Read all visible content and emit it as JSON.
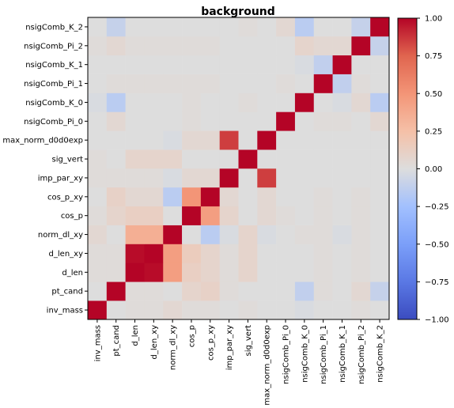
{
  "chart_data": {
    "type": "heatmap",
    "title": "background",
    "x_labels": [
      "inv_mass",
      "pt_cand",
      "d_len",
      "d_len_xy",
      "norm_dl_xy",
      "cos_p",
      "cos_p_xy",
      "imp_par_xy",
      "sig_vert",
      "max_norm_d0d0exp",
      "nsigComb_Pi_0",
      "nsigComb_K_0",
      "nsigComb_Pi_1",
      "nsigComb_K_1",
      "nsigComb_Pi_2",
      "nsigComb_K_2"
    ],
    "y_labels": [
      "inv_mass",
      "pt_cand",
      "d_len",
      "d_len_xy",
      "norm_dl_xy",
      "cos_p",
      "cos_p_xy",
      "imp_par_xy",
      "sig_vert",
      "max_norm_d0d0exp",
      "nsigComb_Pi_0",
      "nsigComb_K_0",
      "nsigComb_Pi_1",
      "nsigComb_K_1",
      "nsigComb_Pi_2",
      "nsigComb_K_2"
    ],
    "values": [
      [
        1.0,
        0.0,
        0.02,
        0.02,
        0.05,
        0.02,
        0.02,
        0.0,
        0.02,
        0.0,
        0.0,
        -0.02,
        0.0,
        0.0,
        0.02,
        0.0
      ],
      [
        0.0,
        1.0,
        0.02,
        0.02,
        0.0,
        0.08,
        0.1,
        0.02,
        0.0,
        0.0,
        0.0,
        -0.12,
        0.02,
        0.0,
        0.05,
        -0.1
      ],
      [
        0.02,
        0.02,
        1.0,
        0.98,
        0.45,
        0.12,
        0.08,
        0.02,
        0.08,
        0.0,
        0.0,
        0.0,
        0.02,
        0.0,
        0.02,
        0.0
      ],
      [
        0.02,
        0.02,
        0.98,
        1.0,
        0.45,
        0.15,
        0.08,
        0.02,
        0.08,
        0.0,
        0.0,
        0.0,
        0.02,
        0.0,
        0.02,
        0.0
      ],
      [
        0.05,
        0.0,
        0.35,
        0.35,
        1.0,
        0.0,
        -0.15,
        -0.02,
        0.08,
        -0.02,
        0.0,
        0.02,
        0.02,
        -0.02,
        0.02,
        0.0
      ],
      [
        0.02,
        0.08,
        0.12,
        0.12,
        0.0,
        1.0,
        0.45,
        0.08,
        0.0,
        0.05,
        0.02,
        0.0,
        0.02,
        0.0,
        0.02,
        0.0
      ],
      [
        0.0,
        0.1,
        0.05,
        0.05,
        -0.15,
        0.5,
        1.0,
        0.05,
        0.0,
        0.05,
        0.0,
        0.0,
        0.02,
        0.0,
        0.02,
        0.0
      ],
      [
        0.02,
        0.02,
        0.02,
        0.02,
        -0.02,
        0.05,
        0.05,
        1.0,
        0.0,
        0.85,
        0.0,
        0.0,
        0.0,
        0.0,
        0.0,
        0.0
      ],
      [
        0.02,
        0.0,
        0.08,
        0.08,
        0.08,
        0.0,
        0.0,
        0.0,
        1.0,
        0.0,
        0.0,
        0.0,
        0.0,
        0.0,
        0.0,
        0.0
      ],
      [
        0.0,
        0.0,
        0.0,
        0.0,
        -0.02,
        0.05,
        0.05,
        0.85,
        0.0,
        1.0,
        0.0,
        0.0,
        0.0,
        0.0,
        0.0,
        0.0
      ],
      [
        0.0,
        0.05,
        0.0,
        0.0,
        0.0,
        0.02,
        0.0,
        0.0,
        0.0,
        0.0,
        1.0,
        0.0,
        0.02,
        0.02,
        0.0,
        0.05
      ],
      [
        -0.02,
        -0.15,
        0.0,
        0.0,
        0.0,
        0.02,
        0.0,
        0.0,
        0.02,
        0.0,
        0.0,
        1.0,
        0.0,
        -0.02,
        0.05,
        -0.15
      ],
      [
        0.0,
        0.02,
        0.02,
        0.02,
        0.02,
        0.02,
        0.02,
        0.0,
        0.0,
        0.0,
        0.02,
        0.0,
        1.0,
        -0.12,
        0.02,
        0.0
      ],
      [
        0.0,
        0.0,
        0.0,
        0.0,
        0.0,
        0.0,
        0.0,
        0.0,
        0.0,
        0.0,
        0.0,
        -0.02,
        -0.12,
        1.0,
        0.0,
        0.0
      ],
      [
        0.02,
        0.05,
        0.02,
        0.02,
        0.02,
        0.02,
        0.02,
        0.0,
        0.0,
        0.0,
        0.0,
        0.08,
        0.05,
        0.05,
        1.0,
        -0.1
      ],
      [
        0.0,
        -0.1,
        0.0,
        0.0,
        0.0,
        0.0,
        0.0,
        0.0,
        0.02,
        0.0,
        0.05,
        -0.15,
        0.0,
        0.0,
        -0.1,
        1.0
      ]
    ],
    "colorbar": {
      "min": -1.0,
      "max": 1.0,
      "ticks": [
        1.0,
        0.75,
        0.5,
        0.25,
        0.0,
        -0.25,
        -0.5,
        -0.75,
        -1.0
      ],
      "tick_labels": [
        "1.00",
        "0.75",
        "0.50",
        "0.25",
        "0.00",
        "−0.25",
        "−0.50",
        "−0.75",
        "−1.00"
      ],
      "colormap": "coolwarm",
      "color_low": "#3b4cc0",
      "color_mid": "#dddddd",
      "color_high": "#b40426"
    },
    "xlabel": "",
    "ylabel": "",
    "grid": false
  }
}
